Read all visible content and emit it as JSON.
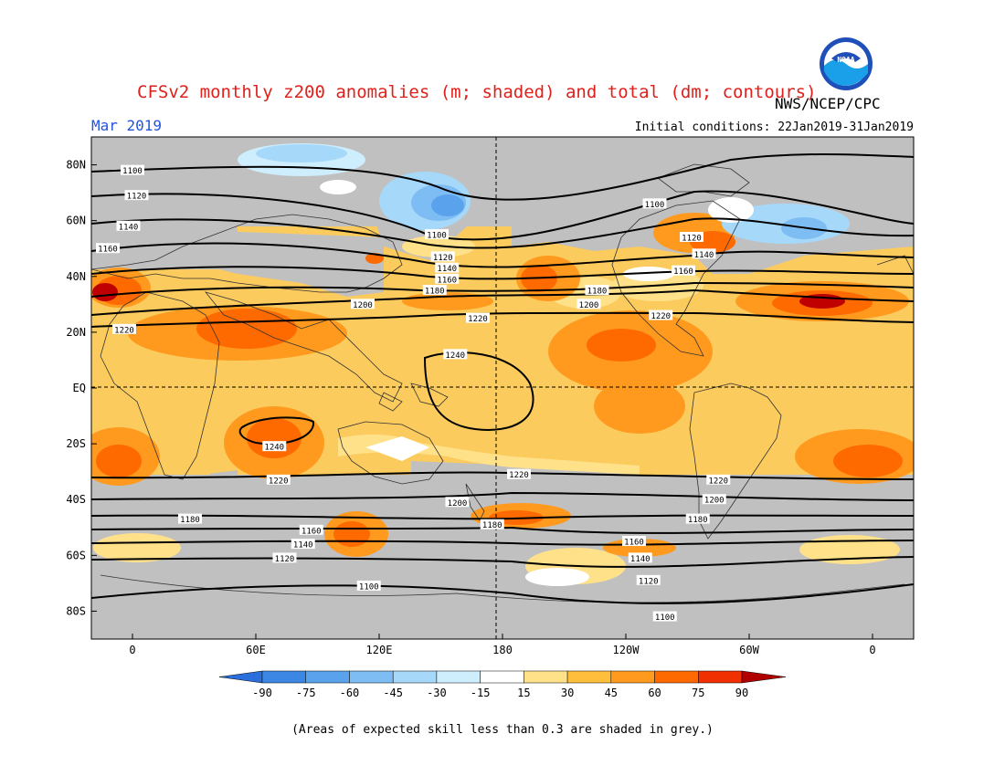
{
  "header": {
    "title": "CFSv2 monthly z200 anomalies (m; shaded) and total (dm; contours)",
    "agency": "NWS/NCEP/CPC",
    "month": "Mar 2019",
    "initial_conditions": "Initial conditions: 22Jan2019-31Jan2019",
    "logo_text": "NOAA"
  },
  "axes": {
    "y_ticks": [
      "80N",
      "60N",
      "40N",
      "20N",
      "EQ",
      "20S",
      "40S",
      "60S",
      "80S"
    ],
    "x_ticks": [
      "0",
      "60E",
      "120E",
      "180",
      "120W",
      "60W",
      "0"
    ]
  },
  "contour_labels": [
    {
      "text": "1100",
      "lon": 0,
      "lat": 78
    },
    {
      "text": "1120",
      "lon": 2,
      "lat": 69
    },
    {
      "text": "1140",
      "lon": -2,
      "lat": 58
    },
    {
      "text": "1160",
      "lon": -12,
      "lat": 50
    },
    {
      "text": "1220",
      "lon": -4,
      "lat": 21
    },
    {
      "text": "1200",
      "lon": 112,
      "lat": 30
    },
    {
      "text": "1180",
      "lon": 147,
      "lat": 35
    },
    {
      "text": "1160",
      "lon": 153,
      "lat": 39
    },
    {
      "text": "1140",
      "lon": 153,
      "lat": 43
    },
    {
      "text": "1120",
      "lon": 151,
      "lat": 47
    },
    {
      "text": "1100",
      "lon": 148,
      "lat": 55
    },
    {
      "text": "1220",
      "lon": 168,
      "lat": 25
    },
    {
      "text": "1240",
      "lon": 157,
      "lat": 12
    },
    {
      "text": "1100",
      "lon": 254,
      "lat": 66
    },
    {
      "text": "1120",
      "lon": 272,
      "lat": 54
    },
    {
      "text": "1140",
      "lon": 278,
      "lat": 48
    },
    {
      "text": "1160",
      "lon": 268,
      "lat": 42
    },
    {
      "text": "1180",
      "lon": 226,
      "lat": 35
    },
    {
      "text": "1200",
      "lon": 222,
      "lat": 30
    },
    {
      "text": "1220",
      "lon": 257,
      "lat": 26
    },
    {
      "text": "1240",
      "lon": 69,
      "lat": -21
    },
    {
      "text": "1220",
      "lon": 71,
      "lat": -33
    },
    {
      "text": "1220",
      "lon": 188,
      "lat": -31
    },
    {
      "text": "1200",
      "lon": 158,
      "lat": -41
    },
    {
      "text": "1180",
      "lon": 28,
      "lat": -47
    },
    {
      "text": "1180",
      "lon": 175,
      "lat": -49
    },
    {
      "text": "1160",
      "lon": 87,
      "lat": -51
    },
    {
      "text": "1140",
      "lon": 83,
      "lat": -56
    },
    {
      "text": "1120",
      "lon": 74,
      "lat": -61
    },
    {
      "text": "1160",
      "lon": 244,
      "lat": -55
    },
    {
      "text": "1140",
      "lon": 247,
      "lat": -61
    },
    {
      "text": "1120",
      "lon": 251,
      "lat": -69
    },
    {
      "text": "1100",
      "lon": 115,
      "lat": -71
    },
    {
      "text": "1100",
      "lon": 259,
      "lat": -82
    },
    {
      "text": "1220",
      "lon": 285,
      "lat": -33
    },
    {
      "text": "1200",
      "lon": 283,
      "lat": -40
    },
    {
      "text": "1180",
      "lon": 275,
      "lat": -47
    }
  ],
  "colorbar": {
    "ticks": [
      "-90",
      "-75",
      "-60",
      "-45",
      "-30",
      "-15",
      "15",
      "30",
      "45",
      "60",
      "75",
      "90"
    ],
    "colors": [
      "#2a6fdb",
      "#3d87e4",
      "#5aa3ec",
      "#7dbdf3",
      "#a6d8fa",
      "#cfeefd",
      "#ffffff",
      "#ffe18a",
      "#ffbf3d",
      "#ff9a1e",
      "#ff6a00",
      "#f03000",
      "#c00000"
    ],
    "low_cap_color": "#2a6fdb",
    "high_cap_color": "#b00000"
  },
  "footnote": "(Areas of expected skill less than 0.3 are shaded in grey.)",
  "colors": {
    "grey_mask": "#c0c0c0",
    "ocean_fill": "#fbcb5e",
    "title_red": "#e0201a",
    "month_blue": "#2255dd"
  }
}
